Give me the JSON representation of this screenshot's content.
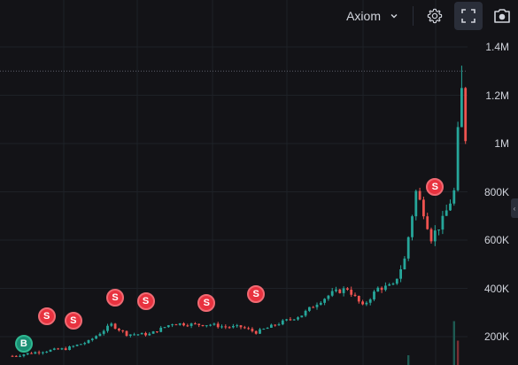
{
  "toolbar": {
    "source_label": "Axiom",
    "chevron_icon": "chevron-down-icon",
    "settings_icon": "gear-icon",
    "fullscreen_icon": "fullscreen-icon",
    "screenshot_icon": "camera-icon"
  },
  "colors": {
    "background": "#131317",
    "up": "#26a69a",
    "down": "#ef5350",
    "grid": "#1e2127",
    "sell_marker": "#e8323f",
    "buy_marker": "#1a8f74"
  },
  "price_line": {
    "value": 1300000
  },
  "chart_data": {
    "type": "candlestick",
    "y_axis": {
      "range": [
        150000,
        1480000
      ],
      "ticks": [
        {
          "value": 200000,
          "label": "200K"
        },
        {
          "value": 400000,
          "label": "400K"
        },
        {
          "value": 600000,
          "label": "600K"
        },
        {
          "value": 800000,
          "label": "800K"
        },
        {
          "value": 1000000,
          "label": "1M"
        },
        {
          "value": 1200000,
          "label": "1.2M"
        },
        {
          "value": 1400000,
          "label": "1.4M"
        }
      ]
    },
    "x_count": 120,
    "grid": true,
    "trend": [
      [
        0,
        120000
      ],
      [
        8,
        140000
      ],
      [
        14,
        150000
      ],
      [
        20,
        180000
      ],
      [
        26,
        250000
      ],
      [
        30,
        210000
      ],
      [
        36,
        210000
      ],
      [
        42,
        255000
      ],
      [
        48,
        250000
      ],
      [
        52,
        250000
      ],
      [
        56,
        240000
      ],
      [
        60,
        240000
      ],
      [
        64,
        218000
      ],
      [
        70,
        255000
      ],
      [
        76,
        290000
      ],
      [
        80,
        340000
      ],
      [
        84,
        380000
      ],
      [
        88,
        400000
      ],
      [
        92,
        325000
      ],
      [
        96,
        400000
      ],
      [
        100,
        410000
      ],
      [
        103,
        520000
      ],
      [
        106,
        800000
      ],
      [
        108,
        720000
      ],
      [
        110,
        610000
      ],
      [
        113,
        680000
      ],
      [
        116,
        800000
      ],
      [
        118,
        1280000
      ],
      [
        119,
        1010000
      ]
    ],
    "markers": [
      {
        "type": "B",
        "x": 3,
        "y": 170000
      },
      {
        "type": "S",
        "x": 9,
        "y": 285000
      },
      {
        "type": "S",
        "x": 16,
        "y": 265000
      },
      {
        "type": "S",
        "x": 27,
        "y": 360000
      },
      {
        "type": "S",
        "x": 35,
        "y": 345000
      },
      {
        "type": "S",
        "x": 51,
        "y": 340000
      },
      {
        "type": "S",
        "x": 64,
        "y": 375000
      },
      {
        "type": "S",
        "x": 111,
        "y": 820000
      }
    ],
    "volume": [
      {
        "x": 104,
        "value": 0.1
      },
      {
        "x": 116,
        "value": 0.45
      },
      {
        "x": 117,
        "value": 0.25
      }
    ]
  }
}
